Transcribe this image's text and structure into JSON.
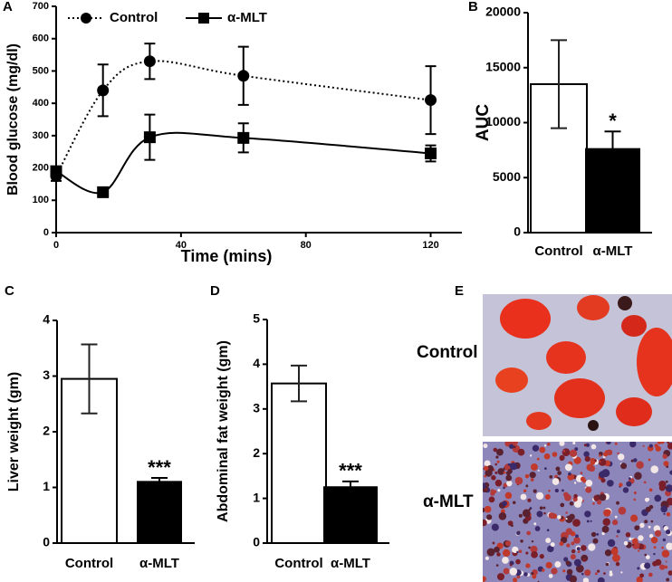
{
  "chart_data": [
    {
      "type": "line",
      "panel": "A",
      "xlabel": "Time (mins)",
      "ylabel": "Blood glucose (mg/dl)",
      "x": [
        0,
        15,
        30,
        60,
        120
      ],
      "xlim": [
        0,
        130
      ],
      "xticks": [
        0,
        40,
        80,
        120
      ],
      "ylim": [
        0,
        700
      ],
      "yticks": [
        0,
        100,
        200,
        300,
        400,
        500,
        600,
        700
      ],
      "series": [
        {
          "name": "Control",
          "color": "#000000",
          "dashed": true,
          "marker": "circle",
          "values": [
            175,
            440,
            530,
            485,
            410
          ],
          "errors": [
            15,
            80,
            55,
            90,
            105
          ]
        },
        {
          "name": "α-MLT",
          "color": "#000000",
          "dashed": false,
          "marker": "square",
          "values": [
            190,
            125,
            295,
            293,
            245
          ],
          "errors": [
            10,
            10,
            70,
            45,
            25
          ]
        }
      ]
    },
    {
      "type": "bar",
      "panel": "B",
      "ylabel": "AUC",
      "categories": [
        "Control",
        "α-MLT"
      ],
      "values": [
        13500,
        7600
      ],
      "errors": [
        4000,
        1600
      ],
      "colors": [
        "#ffffff",
        "#000000"
      ],
      "significance_labels": [
        null,
        "*"
      ],
      "ylim": [
        0,
        20000
      ],
      "yticks": [
        0,
        5000,
        10000,
        15000,
        20000
      ]
    },
    {
      "type": "bar",
      "panel": "C",
      "ylabel": "Liver weight (gm)",
      "categories": [
        "Control",
        "α-MLT"
      ],
      "values": [
        2.95,
        1.1
      ],
      "errors": [
        0.62,
        0.07
      ],
      "colors": [
        "#ffffff",
        "#000000"
      ],
      "significance_labels": [
        null,
        "***"
      ],
      "ylim": [
        0,
        4
      ],
      "yticks": [
        0,
        1,
        2,
        3,
        4
      ]
    },
    {
      "type": "bar",
      "panel": "D",
      "ylabel": "Abdominal fat weight (gm)",
      "categories": [
        "Control",
        "α-MLT"
      ],
      "values": [
        3.57,
        1.25
      ],
      "errors": [
        0.4,
        0.13
      ],
      "colors": [
        "#ffffff",
        "#000000"
      ],
      "significance_labels": [
        null,
        "***"
      ],
      "ylim": [
        0,
        5
      ],
      "yticks": [
        0,
        1,
        2,
        3,
        4,
        5
      ]
    }
  ],
  "image_panel": {
    "panel": "E",
    "labels": [
      "Control",
      "α-MLT"
    ]
  }
}
